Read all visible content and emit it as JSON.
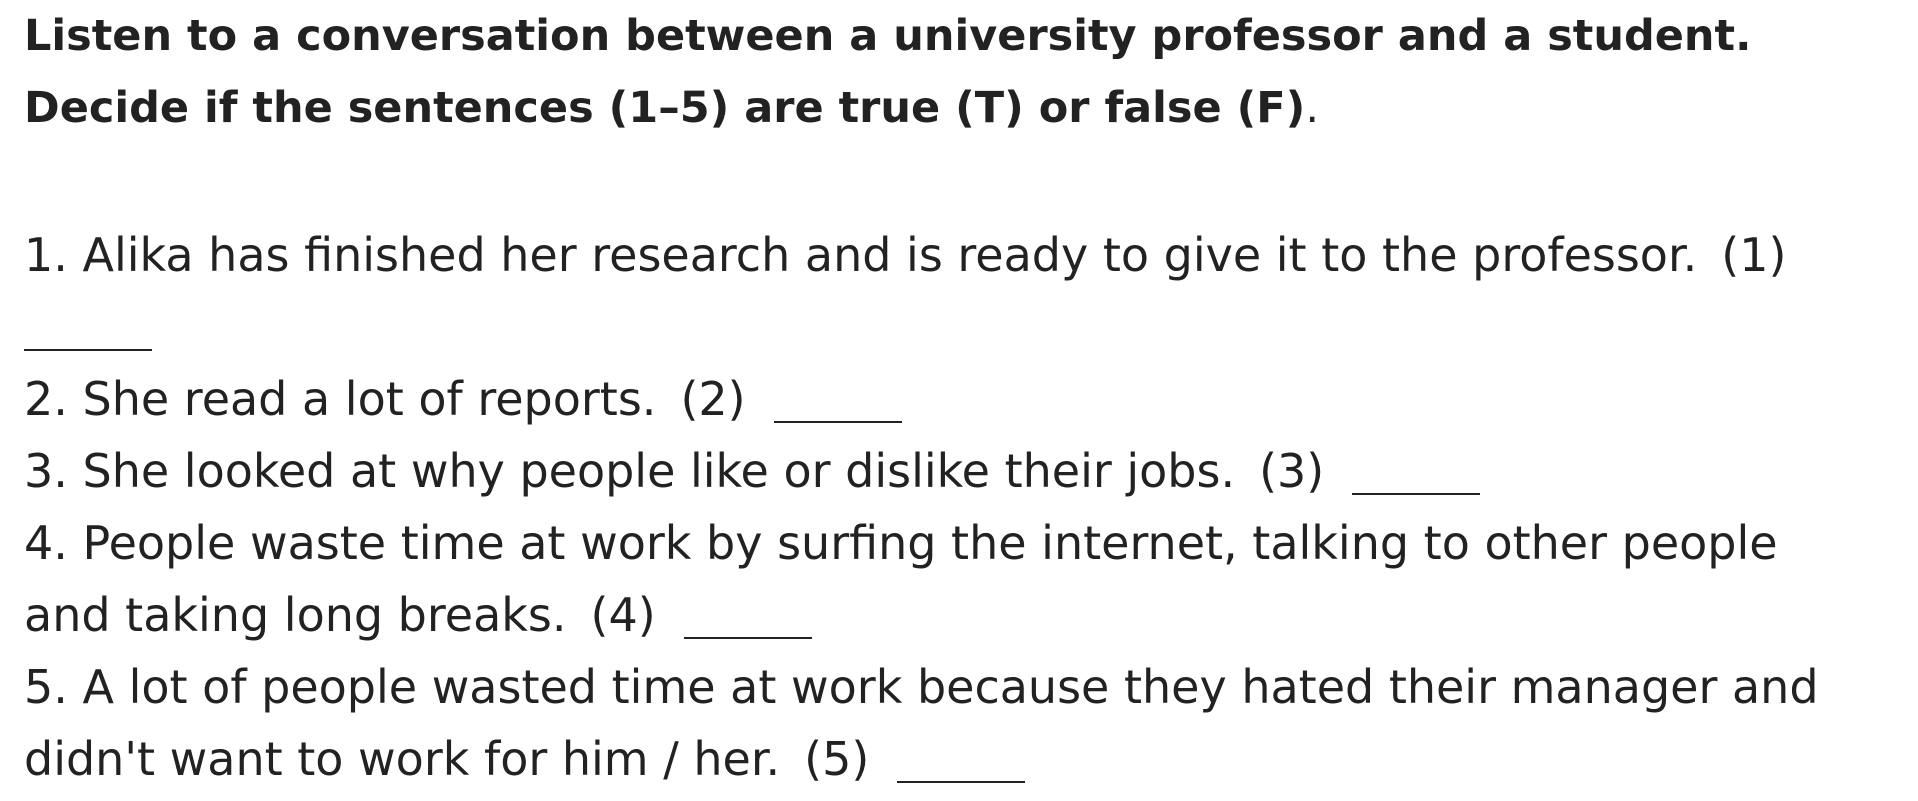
{
  "instruction": {
    "line1": "Listen to a conversation between a university professor and a student.",
    "line2": "Decide if the sentences (1–5) are true (T) or false (F)",
    "line2_end": "."
  },
  "questions": [
    {
      "line1": "1. Alika has finished her research and is ready to give it to the professor.",
      "ref": "(1)"
    },
    {
      "line1": "2. She read a lot of reports.",
      "ref": "(2)"
    },
    {
      "line1": "3. She looked at why people like or dislike their jobs.",
      "ref": "(3)"
    },
    {
      "line1": "4. People waste time at work by surfing the internet, talking to other people",
      "line2": "and taking long breaks.",
      "ref": "(4)"
    },
    {
      "line1": "5. A lot of people wasted time at work because they hated their manager and",
      "line2": "didn't want to work for him / her.",
      "ref": "(5)"
    }
  ]
}
